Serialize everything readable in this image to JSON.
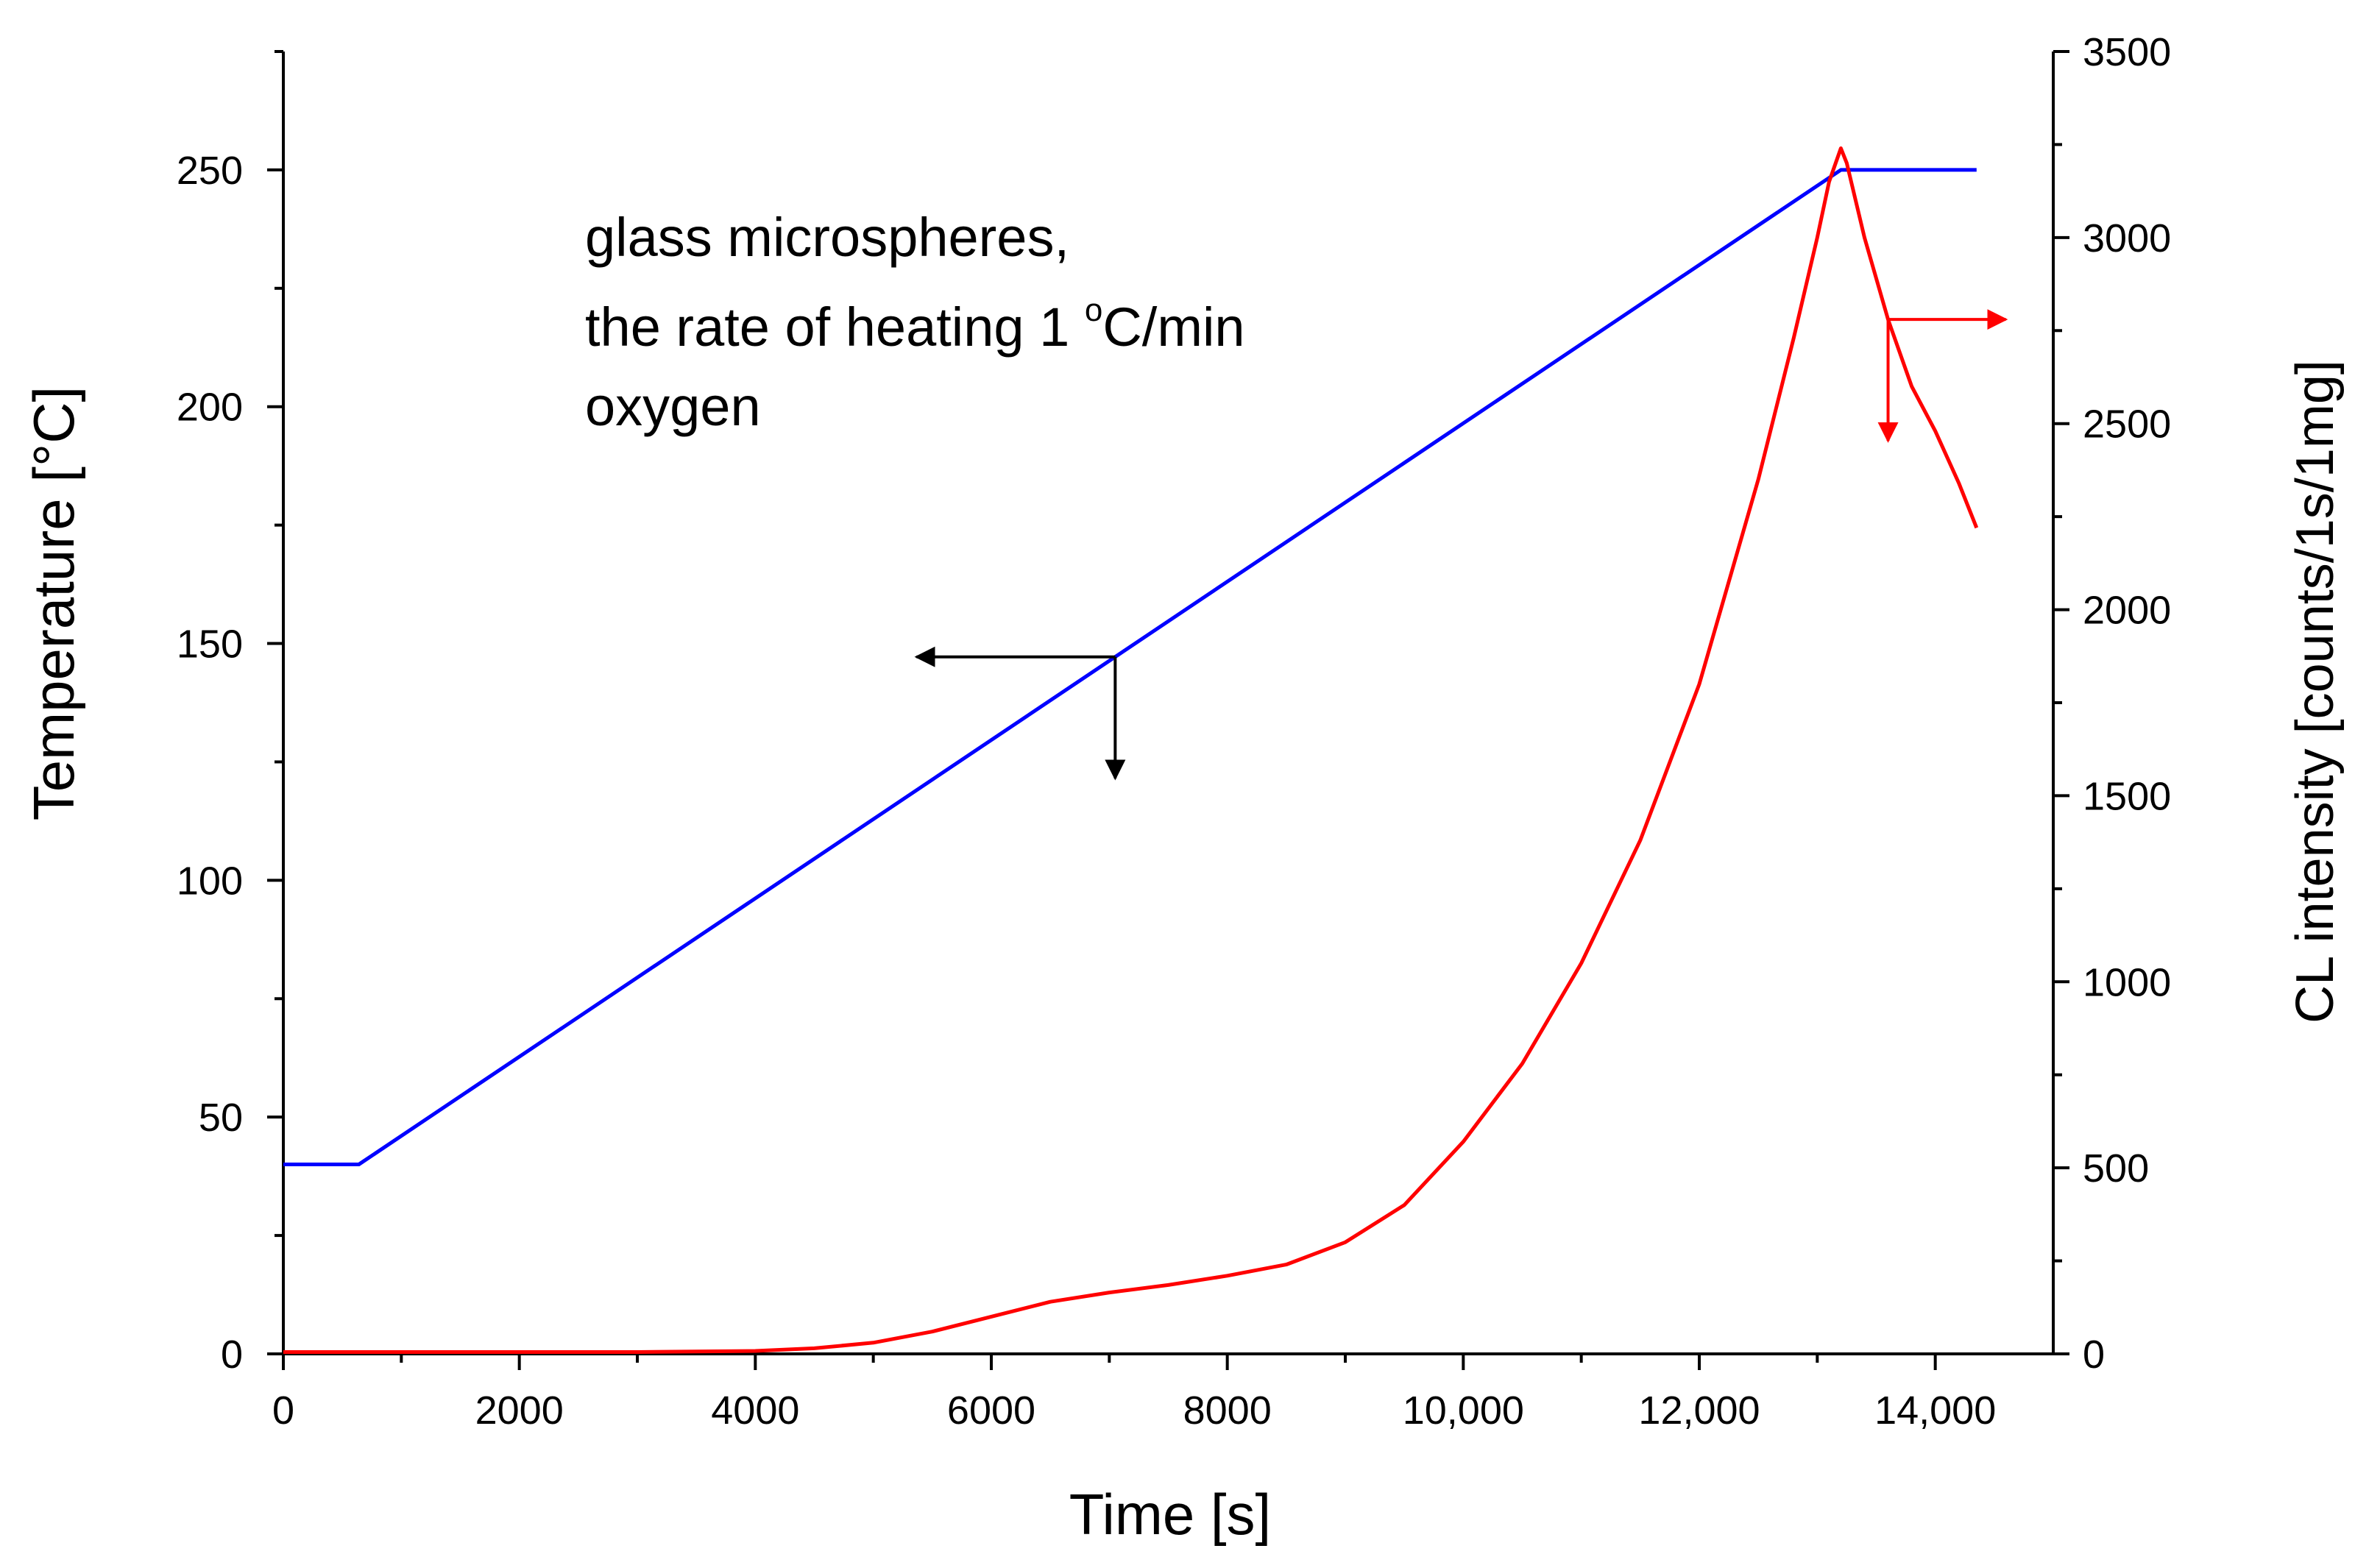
{
  "chart_data": {
    "type": "line",
    "title": "",
    "xlabel": "Time [s]",
    "ylabel_left": "Temperature [°C]",
    "ylabel_right": "CL intensity [counts/1s/1mg]",
    "xlim": [
      0,
      15000
    ],
    "ylim_left": [
      0,
      275
    ],
    "ylim_right": [
      0,
      3500
    ],
    "grid": false,
    "x_ticks": [
      0,
      2000,
      4000,
      6000,
      8000,
      10000,
      12000,
      14000
    ],
    "x_tick_labels": [
      "0",
      "2000",
      "4000",
      "6000",
      "8000",
      "10,000",
      "12,000",
      "14,000"
    ],
    "y_left_ticks": [
      0,
      50,
      100,
      150,
      200,
      250
    ],
    "y_left_tick_labels": [
      "0",
      "50",
      "100",
      "150",
      "200",
      "250"
    ],
    "y_right_ticks": [
      0,
      500,
      1000,
      1500,
      2000,
      2500,
      3000,
      3500
    ],
    "y_right_tick_labels": [
      "0",
      "500",
      "1000",
      "1500",
      "2000",
      "2500",
      "3000",
      "3500"
    ],
    "annotation": {
      "line1": "glass microspheres,",
      "line2_prefix": "the rate of heating 1 ",
      "line2_sup": "o",
      "line2_suffix": "C/min",
      "line3": "oxygen"
    },
    "series": [
      {
        "name": "Temperature",
        "axis": "left",
        "color": "#0000ff",
        "x": [
          0,
          640,
          13200,
          14350
        ],
        "y": [
          40,
          40,
          250,
          250
        ]
      },
      {
        "name": "CL intensity",
        "axis": "right",
        "color": "#ff0000",
        "x": [
          0,
          3000,
          4000,
          4500,
          5000,
          5500,
          6000,
          6500,
          7000,
          7500,
          8000,
          8500,
          9000,
          9500,
          10000,
          10500,
          11000,
          11500,
          12000,
          12500,
          12800,
          13000,
          13100,
          13200,
          13250,
          13400,
          13600,
          13800,
          14000,
          14200,
          14350
        ],
        "y": [
          5,
          5,
          8,
          15,
          30,
          60,
          100,
          140,
          165,
          185,
          210,
          240,
          300,
          400,
          570,
          780,
          1050,
          1380,
          1800,
          2350,
          2730,
          3000,
          3150,
          3240,
          3200,
          3000,
          2780,
          2600,
          2480,
          2340,
          2220
        ]
      }
    ],
    "indicator_arrows": [
      {
        "series": "Temperature",
        "points_to": "left-axis",
        "anchor_x": 7050
      },
      {
        "series": "CL intensity",
        "points_to": "right-axis",
        "anchor_x": 13600
      }
    ]
  }
}
